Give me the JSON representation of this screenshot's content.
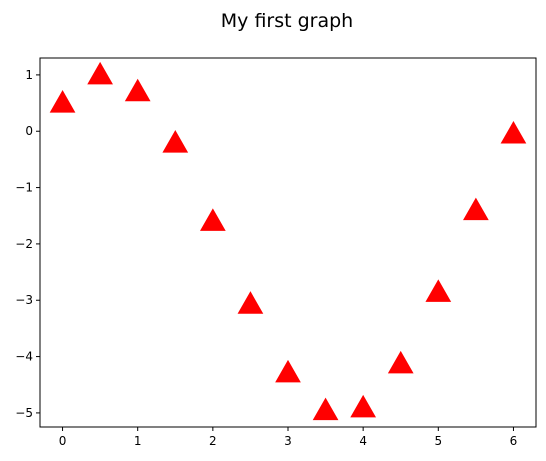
{
  "chart_data": {
    "type": "scatter",
    "title": "My first graph",
    "xlabel": "",
    "ylabel": "",
    "xlim": [
      -0.3,
      6.3
    ],
    "ylim": [
      -5.25,
      1.3
    ],
    "xticks": [
      0,
      1,
      2,
      3,
      4,
      5,
      6
    ],
    "yticks": [
      1,
      0,
      -1,
      -2,
      -3,
      -4,
      -5
    ],
    "xtick_labels": [
      "0",
      "1",
      "2",
      "3",
      "4",
      "5",
      "6"
    ],
    "ytick_labels": [
      "1",
      "0",
      "−1",
      "−2",
      "−3",
      "−4",
      "−5"
    ],
    "grid": false,
    "marker": "triangle-up",
    "color": "#ff0000",
    "series": [
      {
        "x": [
          0,
          0.5,
          1,
          1.5,
          2,
          2.5,
          3,
          3.5,
          4,
          4.5,
          5,
          5.5,
          6
        ],
        "y": [
          0.5,
          1.0,
          0.7,
          -0.21,
          -1.6,
          -3.07,
          -4.29,
          -4.96,
          -4.91,
          -4.13,
          -2.86,
          -1.41,
          -0.05
        ]
      }
    ]
  }
}
